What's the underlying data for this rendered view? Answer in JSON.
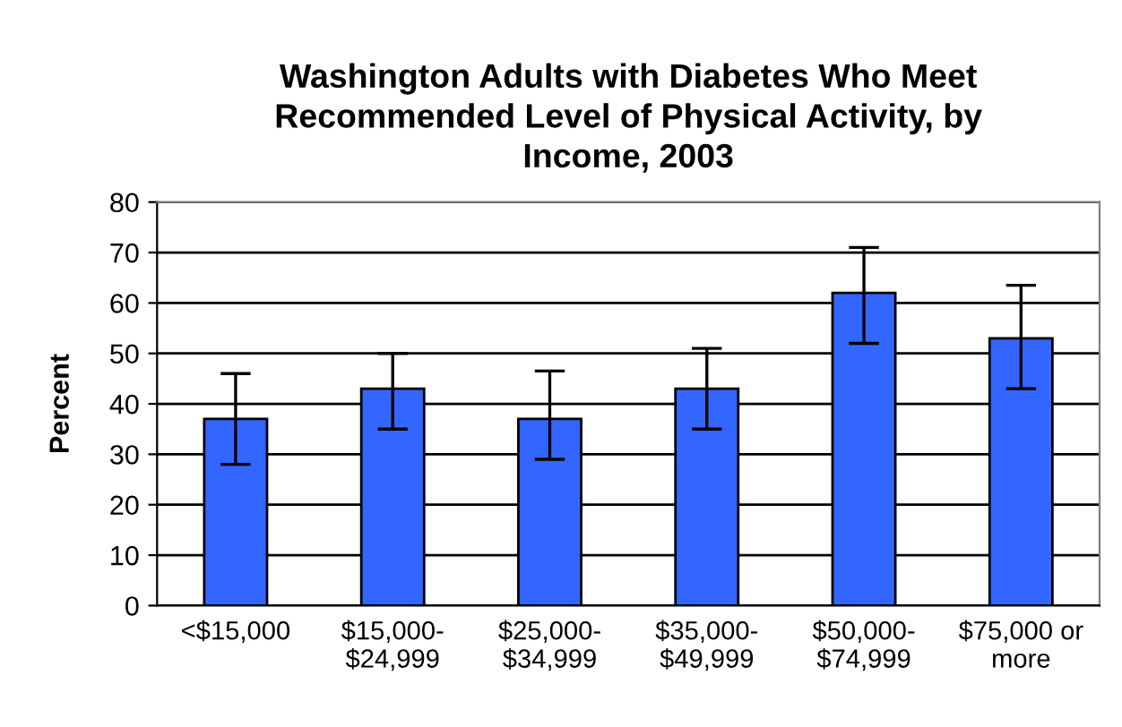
{
  "chart_data": {
    "type": "bar",
    "title": "Washington Adults with Diabetes Who Meet\nRecommended Level of Physical Activity, by\nIncome, 2003",
    "ylabel": "Percent",
    "categories": [
      "<$15,000",
      "$15,000-\n$24,999",
      "$25,000-\n$34,999",
      "$35,000-\n$49,999",
      "$50,000-\n$74,999",
      "$75,000 or\nmore"
    ],
    "values": [
      37,
      43,
      37,
      43,
      62,
      53
    ],
    "errors": [
      [
        28,
        46
      ],
      [
        35,
        50
      ],
      [
        29,
        46.5
      ],
      [
        35,
        51
      ],
      [
        52,
        71
      ],
      [
        43,
        63.5
      ]
    ],
    "color": "#3366ff",
    "ylim": [
      0,
      80
    ],
    "yticks": [
      0,
      10,
      20,
      30,
      40,
      50,
      60,
      70,
      80
    ],
    "grid": "y"
  }
}
